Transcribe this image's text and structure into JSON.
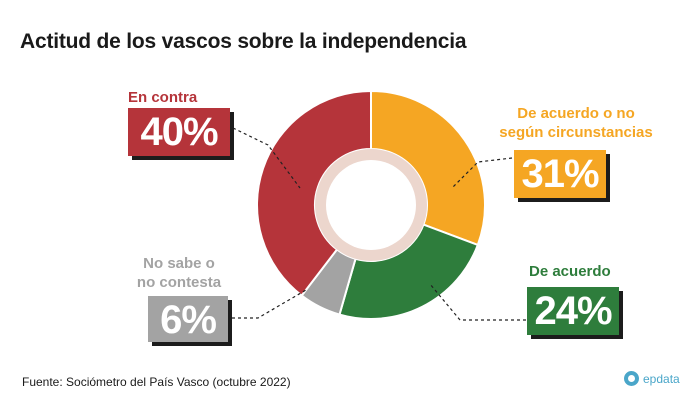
{
  "title": "Actitud de los vascos sobre la independencia",
  "source": "Fuente: Sociómetro del País Vasco (octubre 2022)",
  "brand": "epdata",
  "chart_data": {
    "type": "pie",
    "style": "donut",
    "title": "Actitud de los vascos sobre la independencia",
    "slices": [
      {
        "label": "De acuerdo o no según circunstancias",
        "value": 31,
        "display": "31%",
        "color": "#f5a623"
      },
      {
        "label": "De acuerdo",
        "value": 24,
        "display": "24%",
        "color": "#2e7d3c"
      },
      {
        "label": "No sabe o no contesta",
        "value": 6,
        "display": "6%",
        "color": "#a3a3a3"
      },
      {
        "label": "En contra",
        "value": 40,
        "display": "40%",
        "color": "#b5343a"
      }
    ]
  },
  "labels": {
    "en_contra": {
      "line1": "En contra",
      "pct": "40%"
    },
    "acuerdo_circ": {
      "line1": "De acuerdo o no",
      "line2": "según circunstancias",
      "pct": "31%"
    },
    "acuerdo": {
      "line1": "De acuerdo",
      "pct": "24%"
    },
    "nsnc": {
      "line1": "No sabe o",
      "line2": "no contesta",
      "pct": "6%"
    }
  }
}
